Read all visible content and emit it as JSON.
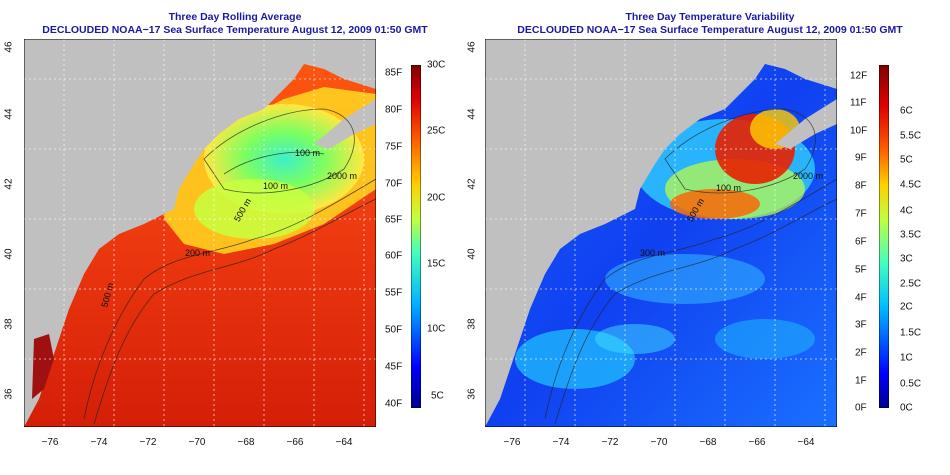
{
  "left": {
    "title": "Three Day Rolling Average",
    "subtitle": "DECLOUDED NOAA−17 Sea Surface Temperature August 12, 2009 01:50 GMT",
    "lat_ticks": [
      "36",
      "38",
      "40",
      "42",
      "44",
      "46"
    ],
    "lon_ticks": [
      "−76",
      "−74",
      "−72",
      "−70",
      "−68",
      "−66",
      "−64"
    ],
    "contour_labels": [
      "100 m",
      "100 m",
      "500 m",
      "200 m",
      "2000 m",
      "500 m"
    ],
    "colorbar": {
      "fahrenheit": [
        "40F",
        "45F",
        "50F",
        "55F",
        "60F",
        "65F",
        "70F",
        "75F",
        "80F",
        "85F"
      ],
      "celsius": [
        "5C",
        "10C",
        "15C",
        "20C",
        "25C",
        "30C"
      ],
      "colors": [
        "#00008f",
        "#0000ff",
        "#00b0ff",
        "#40ffc0",
        "#c0ff40",
        "#ffd000",
        "#ff6000",
        "#e00000",
        "#800000"
      ]
    }
  },
  "right": {
    "title": "Three Day Temperature Variability",
    "subtitle": "DECLOUDED NOAA−17 Sea Surface Temperature August 12, 2009 01:50 GMT",
    "lat_ticks": [
      "36",
      "38",
      "40",
      "42",
      "44",
      "46"
    ],
    "lon_ticks": [
      "−76",
      "−74",
      "−72",
      "−70",
      "−68",
      "−66",
      "−64"
    ],
    "contour_labels": [
      "100 m",
      "2000 m",
      "500 m",
      "300 m"
    ],
    "colorbar": {
      "fahrenheit": [
        "0F",
        "1F",
        "2F",
        "3F",
        "4F",
        "5F",
        "6F",
        "7F",
        "8F",
        "9F",
        "10F",
        "11F",
        "12F"
      ],
      "celsius": [
        "0C",
        "0.5C",
        "1C",
        "1.5C",
        "2C",
        "2.5C",
        "3C",
        "3.5C",
        "4C",
        "4.5C",
        "5C",
        "5.5C",
        "6C"
      ],
      "colors": [
        "#00008f",
        "#0000ff",
        "#0060ff",
        "#00c0ff",
        "#40ffc0",
        "#c0ff40",
        "#ffd000",
        "#ff6000",
        "#e00000",
        "#800000"
      ]
    }
  },
  "colors": {
    "land": "#c0c0c0",
    "warm_ocean": "#f03a10",
    "cool_ocean": "#1a50ff",
    "title": "#1a1aa0"
  }
}
